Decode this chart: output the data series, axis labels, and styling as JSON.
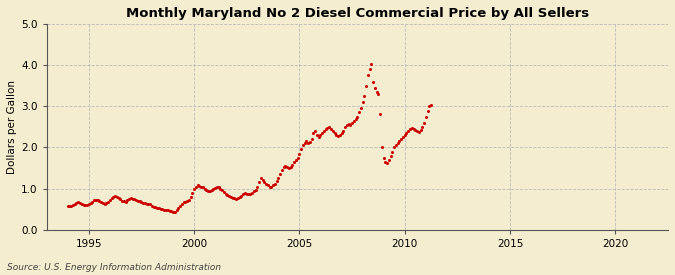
{
  "title": "Monthly Maryland No 2 Diesel Commercial Price by All Sellers",
  "ylabel": "Dollars per Gallon",
  "source": "Source: U.S. Energy Information Administration",
  "background_color": "#f5edcf",
  "plot_bg_color": "#f5edcf",
  "dot_color": "#cc0000",
  "xlim": [
    1993.0,
    2022.5
  ],
  "ylim": [
    0.0,
    5.0
  ],
  "yticks": [
    0.0,
    1.0,
    2.0,
    3.0,
    4.0,
    5.0
  ],
  "xticks": [
    1995,
    2000,
    2005,
    2010,
    2015,
    2020
  ],
  "data": [
    [
      1994.0,
      0.58
    ],
    [
      1994.083,
      0.57
    ],
    [
      1994.167,
      0.57
    ],
    [
      1994.25,
      0.59
    ],
    [
      1994.333,
      0.62
    ],
    [
      1994.417,
      0.65
    ],
    [
      1994.5,
      0.67
    ],
    [
      1994.583,
      0.65
    ],
    [
      1994.667,
      0.62
    ],
    [
      1994.75,
      0.6
    ],
    [
      1994.833,
      0.59
    ],
    [
      1994.917,
      0.6
    ],
    [
      1995.0,
      0.63
    ],
    [
      1995.083,
      0.65
    ],
    [
      1995.167,
      0.68
    ],
    [
      1995.25,
      0.72
    ],
    [
      1995.333,
      0.73
    ],
    [
      1995.417,
      0.72
    ],
    [
      1995.5,
      0.7
    ],
    [
      1995.583,
      0.68
    ],
    [
      1995.667,
      0.65
    ],
    [
      1995.75,
      0.62
    ],
    [
      1995.833,
      0.64
    ],
    [
      1995.917,
      0.67
    ],
    [
      1996.0,
      0.73
    ],
    [
      1996.083,
      0.76
    ],
    [
      1996.167,
      0.8
    ],
    [
      1996.25,
      0.82
    ],
    [
      1996.333,
      0.8
    ],
    [
      1996.417,
      0.77
    ],
    [
      1996.5,
      0.74
    ],
    [
      1996.583,
      0.71
    ],
    [
      1996.667,
      0.69
    ],
    [
      1996.75,
      0.68
    ],
    [
      1996.833,
      0.72
    ],
    [
      1996.917,
      0.75
    ],
    [
      1997.0,
      0.76
    ],
    [
      1997.083,
      0.74
    ],
    [
      1997.167,
      0.74
    ],
    [
      1997.25,
      0.73
    ],
    [
      1997.333,
      0.71
    ],
    [
      1997.417,
      0.7
    ],
    [
      1997.5,
      0.68
    ],
    [
      1997.583,
      0.66
    ],
    [
      1997.667,
      0.64
    ],
    [
      1997.75,
      0.63
    ],
    [
      1997.833,
      0.63
    ],
    [
      1997.917,
      0.62
    ],
    [
      1998.0,
      0.58
    ],
    [
      1998.083,
      0.56
    ],
    [
      1998.167,
      0.55
    ],
    [
      1998.25,
      0.54
    ],
    [
      1998.333,
      0.52
    ],
    [
      1998.417,
      0.51
    ],
    [
      1998.5,
      0.5
    ],
    [
      1998.583,
      0.49
    ],
    [
      1998.667,
      0.48
    ],
    [
      1998.75,
      0.47
    ],
    [
      1998.833,
      0.46
    ],
    [
      1998.917,
      0.45
    ],
    [
      1999.0,
      0.44
    ],
    [
      1999.083,
      0.44
    ],
    [
      1999.167,
      0.47
    ],
    [
      1999.25,
      0.52
    ],
    [
      1999.333,
      0.58
    ],
    [
      1999.417,
      0.63
    ],
    [
      1999.5,
      0.67
    ],
    [
      1999.583,
      0.68
    ],
    [
      1999.667,
      0.7
    ],
    [
      1999.75,
      0.73
    ],
    [
      1999.833,
      0.8
    ],
    [
      1999.917,
      0.9
    ],
    [
      2000.0,
      1.0
    ],
    [
      2000.083,
      1.05
    ],
    [
      2000.167,
      1.08
    ],
    [
      2000.25,
      1.07
    ],
    [
      2000.333,
      1.05
    ],
    [
      2000.417,
      1.03
    ],
    [
      2000.5,
      1.0
    ],
    [
      2000.583,
      0.97
    ],
    [
      2000.667,
      0.95
    ],
    [
      2000.75,
      0.94
    ],
    [
      2000.833,
      0.96
    ],
    [
      2000.917,
      1.0
    ],
    [
      2001.0,
      1.02
    ],
    [
      2001.083,
      1.05
    ],
    [
      2001.167,
      1.03
    ],
    [
      2001.25,
      1.0
    ],
    [
      2001.333,
      0.96
    ],
    [
      2001.417,
      0.92
    ],
    [
      2001.5,
      0.87
    ],
    [
      2001.583,
      0.85
    ],
    [
      2001.667,
      0.83
    ],
    [
      2001.75,
      0.8
    ],
    [
      2001.833,
      0.78
    ],
    [
      2001.917,
      0.77
    ],
    [
      2002.0,
      0.75
    ],
    [
      2002.083,
      0.76
    ],
    [
      2002.167,
      0.79
    ],
    [
      2002.25,
      0.82
    ],
    [
      2002.333,
      0.87
    ],
    [
      2002.417,
      0.9
    ],
    [
      2002.5,
      0.88
    ],
    [
      2002.583,
      0.87
    ],
    [
      2002.667,
      0.88
    ],
    [
      2002.75,
      0.9
    ],
    [
      2002.833,
      0.93
    ],
    [
      2002.917,
      0.96
    ],
    [
      2003.0,
      1.05
    ],
    [
      2003.083,
      1.15
    ],
    [
      2003.167,
      1.25
    ],
    [
      2003.25,
      1.2
    ],
    [
      2003.333,
      1.15
    ],
    [
      2003.417,
      1.12
    ],
    [
      2003.5,
      1.08
    ],
    [
      2003.583,
      1.05
    ],
    [
      2003.667,
      1.05
    ],
    [
      2003.75,
      1.08
    ],
    [
      2003.833,
      1.12
    ],
    [
      2003.917,
      1.18
    ],
    [
      2004.0,
      1.25
    ],
    [
      2004.083,
      1.35
    ],
    [
      2004.167,
      1.45
    ],
    [
      2004.25,
      1.52
    ],
    [
      2004.333,
      1.55
    ],
    [
      2004.417,
      1.53
    ],
    [
      2004.5,
      1.5
    ],
    [
      2004.583,
      1.52
    ],
    [
      2004.667,
      1.58
    ],
    [
      2004.75,
      1.65
    ],
    [
      2004.833,
      1.7
    ],
    [
      2004.917,
      1.75
    ],
    [
      2005.0,
      1.85
    ],
    [
      2005.083,
      1.95
    ],
    [
      2005.167,
      2.05
    ],
    [
      2005.25,
      2.1
    ],
    [
      2005.333,
      2.15
    ],
    [
      2005.417,
      2.1
    ],
    [
      2005.5,
      2.12
    ],
    [
      2005.583,
      2.2
    ],
    [
      2005.667,
      2.35
    ],
    [
      2005.75,
      2.4
    ],
    [
      2005.833,
      2.3
    ],
    [
      2005.917,
      2.25
    ],
    [
      2006.0,
      2.3
    ],
    [
      2006.083,
      2.35
    ],
    [
      2006.167,
      2.4
    ],
    [
      2006.25,
      2.45
    ],
    [
      2006.333,
      2.48
    ],
    [
      2006.417,
      2.5
    ],
    [
      2006.5,
      2.45
    ],
    [
      2006.583,
      2.4
    ],
    [
      2006.667,
      2.35
    ],
    [
      2006.75,
      2.3
    ],
    [
      2006.833,
      2.28
    ],
    [
      2006.917,
      2.3
    ],
    [
      2007.0,
      2.35
    ],
    [
      2007.083,
      2.4
    ],
    [
      2007.167,
      2.5
    ],
    [
      2007.25,
      2.55
    ],
    [
      2007.333,
      2.58
    ],
    [
      2007.417,
      2.55
    ],
    [
      2007.5,
      2.6
    ],
    [
      2007.583,
      2.65
    ],
    [
      2007.667,
      2.7
    ],
    [
      2007.75,
      2.75
    ],
    [
      2007.833,
      2.85
    ],
    [
      2007.917,
      2.95
    ],
    [
      2008.0,
      3.1
    ],
    [
      2008.083,
      3.25
    ],
    [
      2008.167,
      3.5
    ],
    [
      2008.25,
      3.75
    ],
    [
      2008.333,
      3.9
    ],
    [
      2008.417,
      4.02
    ],
    [
      2008.5,
      3.6
    ],
    [
      2008.583,
      3.45
    ],
    [
      2008.667,
      3.35
    ],
    [
      2008.75,
      3.3
    ],
    [
      2008.833,
      2.8
    ],
    [
      2008.917,
      2.0
    ],
    [
      2009.0,
      1.75
    ],
    [
      2009.083,
      1.65
    ],
    [
      2009.167,
      1.63
    ],
    [
      2009.25,
      1.7
    ],
    [
      2009.333,
      1.8
    ],
    [
      2009.417,
      1.9
    ],
    [
      2009.5,
      2.0
    ],
    [
      2009.583,
      2.05
    ],
    [
      2009.667,
      2.1
    ],
    [
      2009.75,
      2.15
    ],
    [
      2009.833,
      2.2
    ],
    [
      2009.917,
      2.25
    ],
    [
      2010.0,
      2.3
    ],
    [
      2010.083,
      2.35
    ],
    [
      2010.167,
      2.4
    ],
    [
      2010.25,
      2.45
    ],
    [
      2010.333,
      2.48
    ],
    [
      2010.417,
      2.45
    ],
    [
      2010.5,
      2.42
    ],
    [
      2010.583,
      2.4
    ],
    [
      2010.667,
      2.38
    ],
    [
      2010.75,
      2.42
    ],
    [
      2010.833,
      2.5
    ],
    [
      2010.917,
      2.6
    ],
    [
      2011.0,
      2.75
    ],
    [
      2011.083,
      2.88
    ],
    [
      2011.167,
      3.0
    ],
    [
      2011.25,
      3.02
    ]
  ]
}
